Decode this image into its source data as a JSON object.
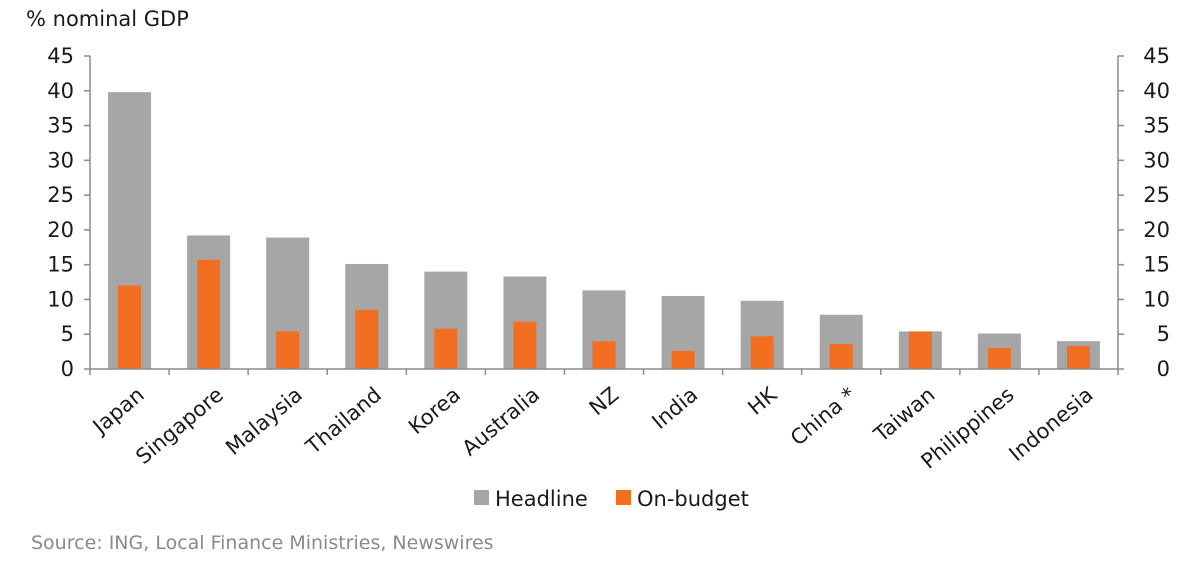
{
  "chart_data": {
    "type": "bar",
    "ylabel": "% nominal GDP",
    "ylim": [
      0,
      45
    ],
    "yticks": [
      0,
      5,
      10,
      15,
      20,
      25,
      30,
      35,
      40,
      45
    ],
    "categories": [
      "Japan",
      "Singapore",
      "Malaysia",
      "Thailand",
      "Korea",
      "Australia",
      "NZ",
      "India",
      "HK",
      "China *",
      "Taiwan",
      "Philippines",
      "Indonesia"
    ],
    "series": [
      {
        "name": "Headline",
        "color": "#a6a6a6",
        "values": [
          39.8,
          19.2,
          18.9,
          15.1,
          14.0,
          13.3,
          11.3,
          10.5,
          9.8,
          7.8,
          5.4,
          5.1,
          4.0
        ]
      },
      {
        "name": "On-budget",
        "color": "#f26f21",
        "values": [
          12.0,
          15.7,
          5.4,
          8.5,
          5.8,
          6.8,
          4.0,
          2.6,
          4.7,
          3.6,
          5.4,
          3.0,
          3.3
        ]
      }
    ],
    "legend_position": "bottom",
    "grid": false,
    "dual_axis_mirror": true
  },
  "source": "Source: ING, Local Finance Ministries, Newswires"
}
